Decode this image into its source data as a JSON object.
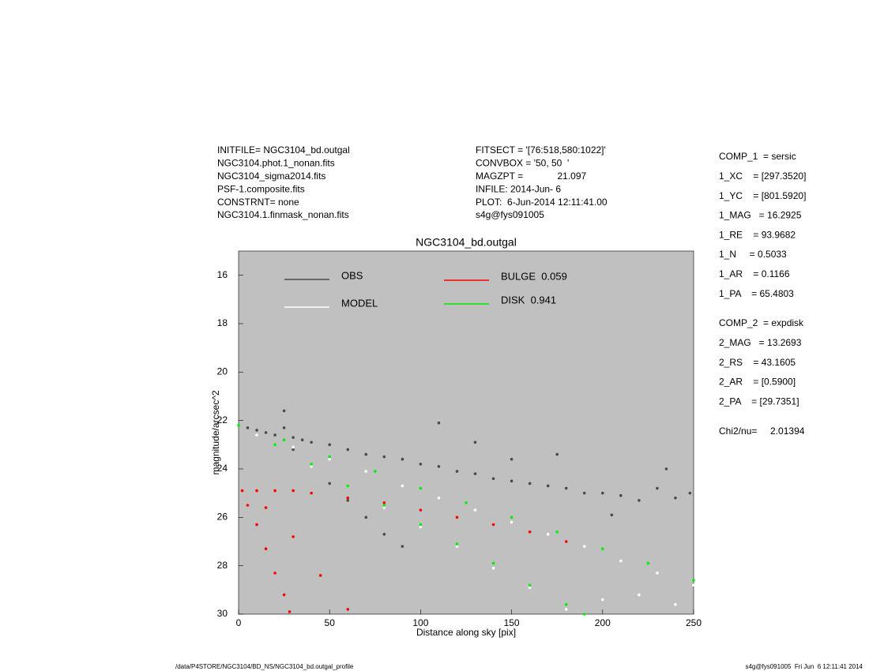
{
  "header": {
    "left": [
      "INITFILE= NGC3104_bd.outgal",
      "NGC3104.phot.1_nonan.fits",
      "NGC3104_sigma2014.fits",
      "PSF-1.composite.fits",
      "CONSTRNT= none",
      "NGC3104.1.finmask_nonan.fits"
    ],
    "middle": [
      "FITSECT = '[76:518,580:1022]'",
      "CONVBOX = '50, 50  '",
      "MAGZPT =             21.097",
      "INFILE: 2014-Jun- 6",
      "PLOT:  6-Jun-2014 12:11:41.00",
      "s4g@fys091005"
    ],
    "parameters_1": [
      "COMP_1  = sersic",
      "1_XC    = [297.3520]",
      "1_YC    = [801.5920]",
      "1_MAG   = 16.2925",
      "1_RE    = 93.9682",
      "1_N     = 0.5033",
      "1_AR    = 0.1166",
      "1_PA    = 65.4803"
    ],
    "parameters_2": [
      "COMP_2  = expdisk",
      "2_MAG   = 13.2693",
      "2_RS    = 43.1605",
      "2_AR    = [0.5900]",
      "2_PA    = [29.7351]"
    ],
    "chi2": "Chi2/nu=     2.01394"
  },
  "footer": {
    "left": "/data/P4STORE/NGC3104/BD_NS/NGC3104_bd.outgal_profile",
    "right": "s4g@fys091005  Fri Jun  6 12:11:41 2014"
  },
  "chart_data": {
    "type": "scatter",
    "title": "NGC3104_bd.outgal",
    "x_label": "Distance along sky [pix]",
    "y_label": "magnitude/arcsec^2",
    "xlim": [
      0,
      250
    ],
    "xticks": [
      0,
      50,
      100,
      150,
      200,
      250
    ],
    "ylim": [
      30,
      15
    ],
    "yticks": [
      16,
      18,
      20,
      22,
      24,
      26,
      28,
      30
    ],
    "background": "#c0c0c0",
    "series": [
      {
        "name": "OBS",
        "color": "#4a4a4a",
        "x": [
          5,
          10,
          15,
          20,
          25,
          30,
          35,
          40,
          50,
          60,
          70,
          80,
          90,
          100,
          110,
          120,
          130,
          140,
          150,
          160,
          170,
          180,
          190,
          200,
          210,
          220,
          230,
          240,
          248,
          30,
          40,
          50,
          60,
          70,
          80,
          25,
          90,
          110,
          130,
          150,
          175,
          205,
          235
        ],
        "values": [
          22.3,
          22.4,
          22.5,
          22.6,
          22.3,
          22.7,
          22.8,
          22.9,
          23.0,
          23.2,
          23.4,
          23.5,
          23.6,
          23.8,
          23.9,
          24.1,
          24.2,
          24.4,
          24.5,
          24.6,
          24.7,
          24.8,
          25.0,
          25.0,
          25.1,
          25.3,
          24.8,
          25.2,
          25.0,
          23.2,
          23.9,
          24.6,
          25.3,
          26.0,
          26.7,
          21.6,
          27.2,
          22.1,
          22.9,
          23.6,
          23.4,
          25.9,
          24.0
        ]
      },
      {
        "name": "MODEL",
        "color": "#ffffff",
        "x": [
          10,
          30,
          50,
          70,
          90,
          110,
          130,
          150,
          170,
          190,
          210,
          230,
          250,
          20,
          40,
          60,
          80,
          100,
          120,
          140,
          160,
          180,
          200,
          220,
          240
        ],
        "values": [
          22.6,
          23.1,
          23.6,
          24.1,
          24.7,
          25.2,
          25.7,
          26.2,
          26.7,
          27.2,
          27.8,
          28.3,
          28.8,
          23.0,
          23.9,
          24.7,
          25.6,
          26.4,
          27.2,
          28.1,
          28.9,
          29.8,
          29.4,
          29.2,
          29.6
        ]
      },
      {
        "name": "BULGE  0.059",
        "color": "#ff0000",
        "x": [
          2,
          10,
          20,
          30,
          40,
          60,
          80,
          100,
          120,
          140,
          160,
          180,
          5,
          10,
          15,
          20,
          25,
          28,
          15,
          30,
          45,
          60
        ],
        "values": [
          24.9,
          24.9,
          24.9,
          24.9,
          25.0,
          25.2,
          25.4,
          25.7,
          26.0,
          26.3,
          26.6,
          27.0,
          25.5,
          26.3,
          27.3,
          28.3,
          29.2,
          29.9,
          25.6,
          26.8,
          28.4,
          29.8
        ]
      },
      {
        "name": "DISK  0.941",
        "color": "#00ee00",
        "x": [
          0,
          25,
          50,
          75,
          100,
          125,
          150,
          175,
          200,
          225,
          250,
          20,
          40,
          60,
          80,
          100,
          120,
          140,
          160,
          180,
          190
        ],
        "values": [
          22.2,
          22.8,
          23.5,
          24.1,
          24.8,
          25.4,
          26.0,
          26.6,
          27.3,
          27.9,
          28.6,
          23.0,
          23.8,
          24.7,
          25.5,
          26.3,
          27.1,
          27.9,
          28.8,
          29.6,
          30.0
        ]
      }
    ]
  }
}
